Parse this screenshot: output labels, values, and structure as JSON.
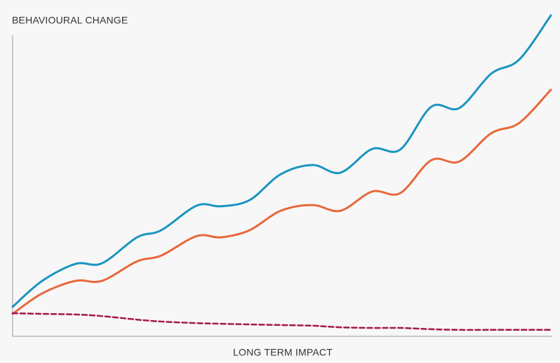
{
  "chart_data": {
    "type": "line",
    "y_label": "BEHAVIOURAL CHANGE",
    "x_label": "LONG TERM IMPACT",
    "xlim": [
      0,
      100
    ],
    "ylim": [
      0,
      100
    ],
    "x": [
      0,
      5.5,
      11.7,
      16.6,
      23.1,
      27.6,
      34.2,
      38.7,
      44,
      49.8,
      55.7,
      60.9,
      66.8,
      72,
      77.8,
      83,
      88.9,
      94.1,
      100
    ],
    "series": [
      {
        "color": "#1a95c0",
        "style": "solid",
        "values": [
          9.0,
          17.1,
          22.4,
          22.6,
          30.7,
          32.9,
          40.6,
          40.4,
          42.3,
          50.4,
          53.3,
          50.9,
          58.3,
          58.1,
          71.5,
          71.1,
          81.8,
          86.2,
          100
        ]
      },
      {
        "color": "#e8683a",
        "style": "solid",
        "values": [
          6.8,
          13.2,
          17.1,
          17.1,
          23.2,
          25.0,
          31.1,
          30.7,
          32.9,
          39.0,
          40.8,
          39.0,
          45.0,
          44.5,
          54.8,
          54.4,
          63.2,
          66.4,
          76.8
        ]
      },
      {
        "color": "#a3184a",
        "style": "dashed",
        "values": [
          7.0,
          6.8,
          6.6,
          6.1,
          5.0,
          4.4,
          3.9,
          3.7,
          3.5,
          3.3,
          3.1,
          2.6,
          2.4,
          2.4,
          2.0,
          1.8,
          1.8,
          1.8,
          1.8
        ]
      }
    ]
  }
}
